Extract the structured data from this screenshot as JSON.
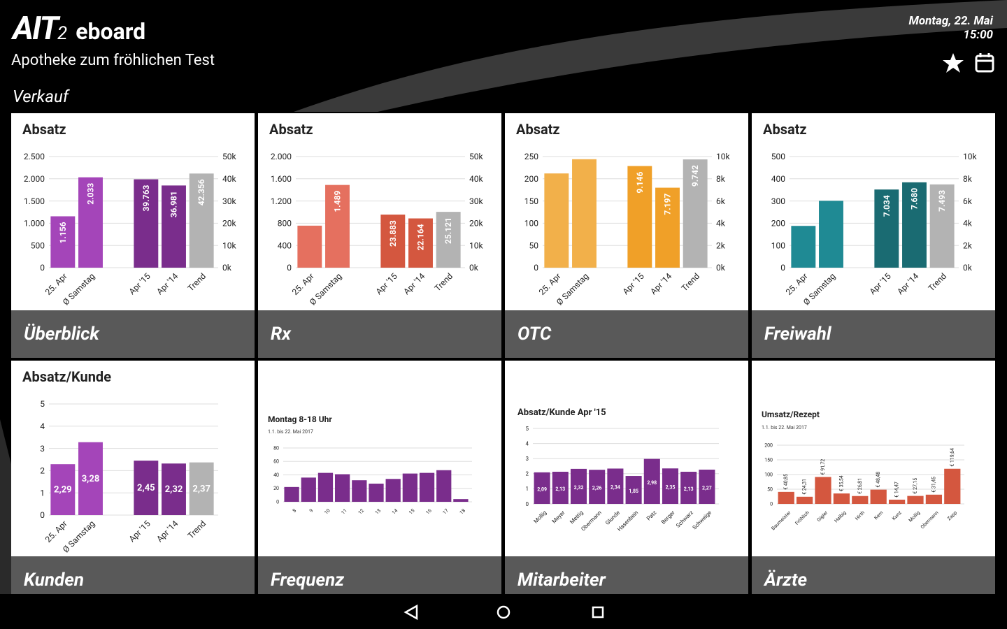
{
  "header": {
    "logo": "AIT",
    "logo_sub": "2",
    "product": "eboard",
    "pharmacy": "Apotheke zum fröhlichen Test",
    "section": "Verkauf",
    "date": "Montag, 22. Mai",
    "time": "15:00"
  },
  "chart_data": [
    {
      "type": "bar",
      "tile": "Überblick",
      "title": "Absatz",
      "categories": [
        "25. Apr",
        "Ø Samstag",
        null,
        "Apr '15",
        "Apr '14",
        "Trend"
      ],
      "ylim": [
        0,
        2500
      ],
      "yticks": [
        0,
        500,
        {
          "value": 1000,
          "label": "1.000"
        },
        {
          "value": 1500,
          "label": "1.500"
        },
        {
          "value": 2000,
          "label": "2.000"
        },
        {
          "value": 2500,
          "label": "2.500"
        }
      ],
      "y2lim": [
        0,
        50000
      ],
      "y2ticks": [
        {
          "value": 0,
          "label": "0k"
        },
        {
          "value": 10000,
          "label": "10k"
        },
        {
          "value": 20000,
          "label": "20k"
        },
        {
          "value": 30000,
          "label": "30k"
        },
        {
          "value": 40000,
          "label": "40k"
        },
        {
          "value": 50000,
          "label": "50k"
        }
      ],
      "grid": true,
      "series": [
        {
          "color": "#a445b9",
          "values": [
            1156,
            2033,
            null,
            null,
            null,
            null
          ],
          "value_labels": [
            "1.156",
            "2.033",
            null,
            null,
            null,
            null
          ]
        },
        {
          "color": "#7a2d8c",
          "axis": "y2",
          "values": [
            null,
            null,
            null,
            39763,
            36981,
            null
          ],
          "value_labels": [
            null,
            null,
            null,
            "39.763",
            "36.981",
            null
          ]
        },
        {
          "color": "#b3b3b3",
          "axis": "y2",
          "values": [
            null,
            null,
            null,
            null,
            null,
            42356
          ],
          "value_labels": [
            null,
            null,
            null,
            null,
            null,
            "42.356"
          ]
        }
      ]
    },
    {
      "type": "bar",
      "tile": "Rx",
      "title": "Absatz",
      "categories": [
        "25. Apr",
        "Ø Samstag",
        null,
        "Apr '15",
        "Apr '14",
        "Trend"
      ],
      "ylim": [
        0,
        2000
      ],
      "yticks": [
        0,
        400,
        800,
        {
          "value": 1200,
          "label": "1.200"
        },
        {
          "value": 1600,
          "label": "1.600"
        },
        {
          "value": 2000,
          "label": "2.000"
        }
      ],
      "y2lim": [
        0,
        50000
      ],
      "y2ticks": [
        {
          "value": 0,
          "label": "0k"
        },
        {
          "value": 10000,
          "label": "10k"
        },
        {
          "value": 20000,
          "label": "20k"
        },
        {
          "value": 30000,
          "label": "30k"
        },
        {
          "value": 40000,
          "label": "40k"
        },
        {
          "value": 50000,
          "label": "50k"
        }
      ],
      "grid": true,
      "series": [
        {
          "color": "#e5705f",
          "values": [
            756,
            1489,
            null,
            null,
            null,
            null
          ],
          "value_labels": [
            null,
            "1.489",
            null,
            null,
            null,
            null
          ]
        },
        {
          "color": "#d4573f",
          "axis": "y2",
          "values": [
            null,
            null,
            null,
            23883,
            22164,
            null
          ],
          "value_labels": [
            null,
            null,
            null,
            "23.883",
            "22.164",
            null
          ]
        },
        {
          "color": "#b3b3b3",
          "axis": "y2",
          "values": [
            null,
            null,
            null,
            null,
            null,
            25121
          ],
          "value_labels": [
            null,
            null,
            null,
            null,
            null,
            "25.121"
          ]
        }
      ]
    },
    {
      "type": "bar",
      "tile": "OTC",
      "title": "Absatz",
      "categories": [
        "25. Apr",
        "Ø Samstag",
        null,
        "Apr '15",
        "Apr '14",
        "Trend"
      ],
      "ylim": [
        0,
        250
      ],
      "yticks": [
        0,
        50,
        100,
        150,
        200,
        250
      ],
      "y2lim": [
        0,
        10000
      ],
      "y2ticks": [
        {
          "value": 0,
          "label": "0k"
        },
        {
          "value": 2000,
          "label": "2k"
        },
        {
          "value": 4000,
          "label": "4k"
        },
        {
          "value": 6000,
          "label": "6k"
        },
        {
          "value": 8000,
          "label": "8k"
        },
        {
          "value": 10000,
          "label": "10k"
        }
      ],
      "grid": true,
      "series": [
        {
          "color": "#f2b04a",
          "values": [
            212,
            244,
            null,
            null,
            null,
            null
          ]
        },
        {
          "color": "#f0a028",
          "axis": "y2",
          "values": [
            null,
            null,
            null,
            9146,
            7197,
            null
          ],
          "value_labels": [
            null,
            null,
            null,
            "9.146",
            "7.197",
            null
          ]
        },
        {
          "color": "#b3b3b3",
          "axis": "y2",
          "values": [
            null,
            null,
            null,
            null,
            null,
            9742
          ],
          "value_labels": [
            null,
            null,
            null,
            null,
            null,
            "9.742"
          ]
        }
      ]
    },
    {
      "type": "bar",
      "tile": "Freiwahl",
      "title": "Absatz",
      "categories": [
        "25. Apr",
        "Ø Samstag",
        null,
        "Apr '15",
        "Apr '14",
        "Trend"
      ],
      "ylim": [
        0,
        500
      ],
      "yticks": [
        0,
        100,
        200,
        300,
        400,
        500
      ],
      "y2lim": [
        0,
        10000
      ],
      "y2ticks": [
        {
          "value": 0,
          "label": "0k"
        },
        {
          "value": 2000,
          "label": "2k"
        },
        {
          "value": 4000,
          "label": "4k"
        },
        {
          "value": 6000,
          "label": "6k"
        },
        {
          "value": 8000,
          "label": "8k"
        },
        {
          "value": 10000,
          "label": "10k"
        }
      ],
      "grid": true,
      "series": [
        {
          "color": "#1f8a94",
          "values": [
            188,
            301,
            null,
            null,
            null,
            null
          ]
        },
        {
          "color": "#1a6b72",
          "axis": "y2",
          "values": [
            null,
            null,
            null,
            7034,
            7680,
            null
          ],
          "value_labels": [
            null,
            null,
            null,
            "7.034",
            "7.680",
            null
          ]
        },
        {
          "color": "#b3b3b3",
          "axis": "y2",
          "values": [
            null,
            null,
            null,
            null,
            null,
            7493
          ],
          "value_labels": [
            null,
            null,
            null,
            null,
            null,
            "7.493"
          ]
        }
      ]
    },
    {
      "type": "bar",
      "tile": "Kunden",
      "title": "Absatz/Kunde",
      "categories": [
        "25. Apr",
        "Ø Samstag",
        null,
        "Apr '15",
        "Apr '14",
        "Trend"
      ],
      "ylim": [
        0,
        5
      ],
      "yticks": [
        0,
        1,
        2,
        3,
        4,
        5
      ],
      "grid": true,
      "series": [
        {
          "color": "#a445b9",
          "values": [
            2.29,
            3.28,
            null,
            null,
            null,
            null
          ],
          "value_labels": [
            "2,29",
            "3,28",
            null,
            null,
            null,
            null
          ]
        },
        {
          "color": "#7a2d8c",
          "values": [
            null,
            null,
            null,
            2.45,
            2.32,
            null
          ],
          "value_labels": [
            null,
            null,
            null,
            "2,45",
            "2,32",
            null
          ]
        },
        {
          "color": "#b3b3b3",
          "values": [
            null,
            null,
            null,
            null,
            null,
            2.37
          ],
          "value_labels": [
            null,
            null,
            null,
            null,
            null,
            "2,37"
          ]
        }
      ]
    },
    {
      "type": "bar",
      "tile": "Frequenz",
      "title": "Montag 8-18 Uhr",
      "subtitle": "1.1. bis 22. Mai 2017",
      "categories": [
        "8",
        "9",
        "10",
        "11",
        "12",
        "13",
        "14",
        "15",
        "16",
        "17",
        "18"
      ],
      "ylim": [
        0,
        80
      ],
      "yticks": [
        0,
        20,
        40,
        60,
        80
      ],
      "grid": true,
      "series": [
        {
          "color": "#7a2d8c",
          "values": [
            22,
            36,
            43,
            41,
            32,
            27,
            34,
            42,
            43,
            47,
            4
          ]
        }
      ]
    },
    {
      "type": "bar",
      "tile": "Mitarbeiter",
      "title": "Absatz/Kunde Apr '15",
      "categories": [
        "Mollig",
        "Meyer",
        "Mettig",
        "Obermann",
        "Glunde",
        "Hasenbein",
        "Patz",
        "Berger",
        "Schwarz",
        "Schweige"
      ],
      "ylim": [
        0,
        5
      ],
      "yticks": [
        0,
        1,
        2,
        3,
        4,
        5
      ],
      "grid": true,
      "series": [
        {
          "color": "#7a2d8c",
          "values": [
            2.09,
            2.13,
            2.32,
            2.26,
            2.34,
            1.85,
            2.98,
            2.35,
            2.13,
            2.27
          ],
          "value_labels": [
            "2,09",
            "2,13",
            "2,32",
            "2,26",
            "2,34",
            "1,85",
            "2,98",
            "2,35",
            "2,13",
            "2,27"
          ]
        }
      ]
    },
    {
      "type": "bar",
      "tile": "Ärzte",
      "title": "Umsatz/Rezept",
      "subtitle": "1.1. bis 22. Mai 2017",
      "categories": [
        "Baumeister",
        "Fröhlich",
        "Gigler",
        "Halbig",
        "Hirth",
        "Kern",
        "Kunz",
        "Mollig",
        "Obermann",
        "Zapp"
      ],
      "ylim": [
        0,
        200
      ],
      "yticks": [
        0,
        50,
        100,
        150,
        200
      ],
      "grid": true,
      "series": [
        {
          "color": "#d4573f",
          "values": [
            40.85,
            24.31,
            91.72,
            35.54,
            26.81,
            48.48,
            14.47,
            27.15,
            31.45,
            119.64
          ],
          "value_labels": [
            "€ 40,85",
            "€ 24,31",
            "€ 91,72",
            "€ 35,54",
            "€ 26,81",
            "€ 48,48",
            "€ 14,47",
            "€ 27,15",
            "€ 31,45",
            "€ 119,64"
          ]
        }
      ]
    }
  ]
}
